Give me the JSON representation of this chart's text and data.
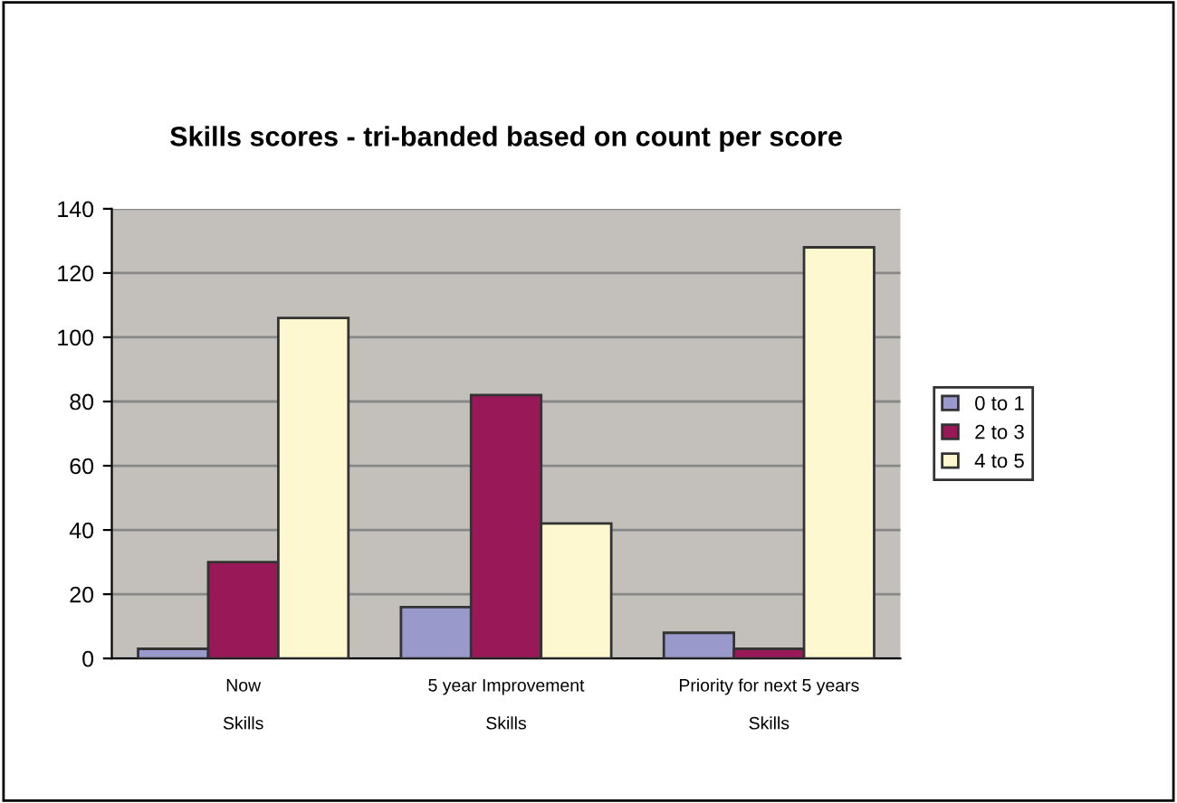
{
  "chart_data": {
    "type": "bar",
    "title": "Skills scores - tri-banded based on count per score",
    "categories": [
      "Now\n\nSkills",
      "5 year Improvement\n\nSkills",
      "Priority for next 5 years\n\nSkills"
    ],
    "series": [
      {
        "name": "0 to 1",
        "color": "#9999cc",
        "values": [
          3,
          16,
          8
        ]
      },
      {
        "name": "2 to 3",
        "color": "#991958",
        "values": [
          30,
          82,
          3
        ]
      },
      {
        "name": "4 to 5",
        "color": "#fdf8cf",
        "values": [
          106,
          42,
          128
        ]
      }
    ],
    "ylim": [
      0,
      140
    ],
    "yticks": [
      0,
      20,
      40,
      60,
      80,
      100,
      120,
      140
    ],
    "grid": "y",
    "legend": "right"
  }
}
